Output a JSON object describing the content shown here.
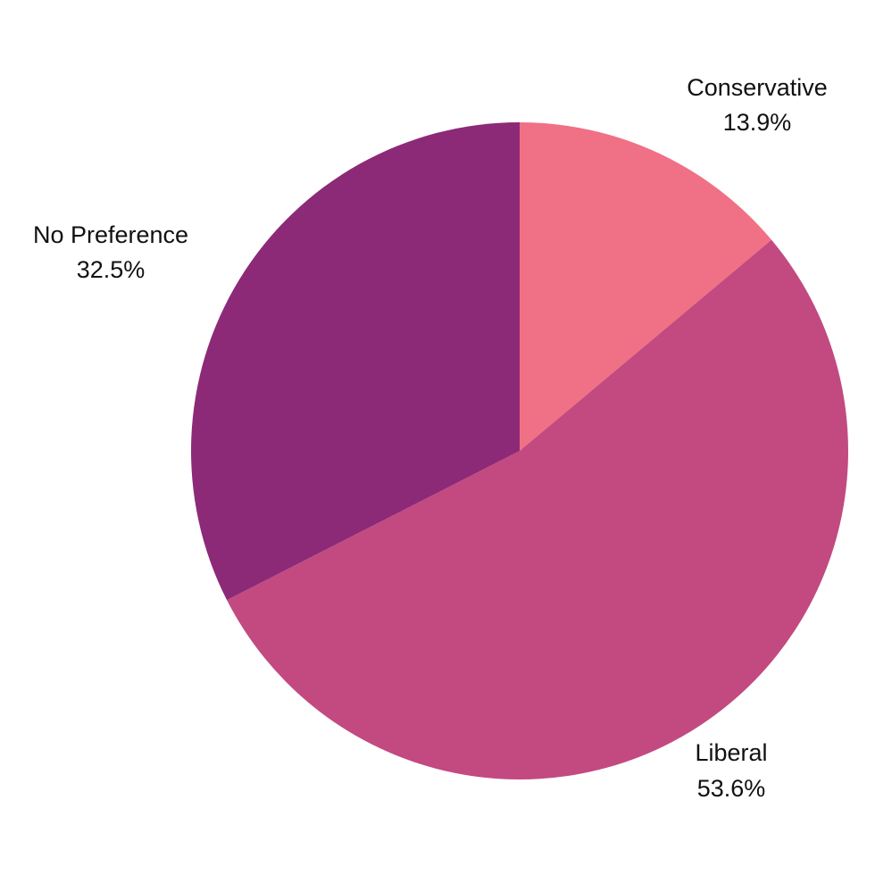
{
  "chart_data": {
    "type": "pie",
    "title": "",
    "categories": [
      "Conservative",
      "Liberal",
      "No Preference"
    ],
    "values": [
      13.9,
      53.6,
      32.5
    ],
    "value_labels": [
      "13.9%",
      "53.6%",
      "32.5%"
    ],
    "colors": [
      "#f07085",
      "#c24a80",
      "#8c2a77"
    ],
    "start_angle_deg": 0,
    "direction": "clockwise",
    "legend": "none",
    "labels_outside": true
  }
}
